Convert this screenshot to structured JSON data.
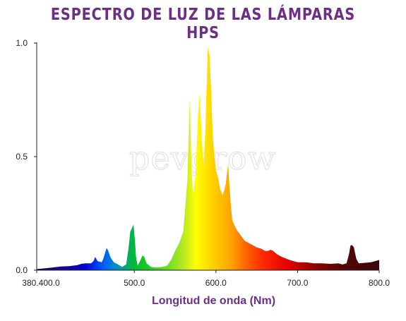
{
  "title": "ESPECTRO DE LUZ DE LAS LÁMPARAS HPS",
  "watermark": "pevgrow",
  "chart_data": {
    "type": "area",
    "title": "ESPECTRO DE LUZ DE LAS LÁMPARAS HPS",
    "xlabel": "Longitud de onda (Nm)",
    "ylabel": "",
    "xlim": [
      380.4,
      800
    ],
    "ylim": [
      0,
      1.0
    ],
    "x_ticks": [
      380.4,
      500,
      600,
      700,
      800
    ],
    "x_tick_labels": [
      "380.400.0",
      "500.0",
      "600.0",
      "700.0",
      "800.0"
    ],
    "y_ticks": [
      0,
      0.5,
      1.0
    ],
    "y_tick_labels": [
      "0.0",
      "0.5",
      "1.0"
    ],
    "grid": false,
    "legend": "none",
    "fill": "wavelength color gradient",
    "x": [
      380.4,
      390,
      400,
      410,
      420,
      430,
      435,
      440,
      447,
      450,
      452,
      455,
      460,
      462,
      466,
      468,
      471,
      475,
      480,
      485,
      490,
      493,
      495,
      497,
      499,
      501,
      502,
      504,
      507,
      510,
      512,
      515,
      520,
      525,
      530,
      535,
      540,
      545,
      550,
      555,
      560,
      565,
      568,
      570,
      572,
      575,
      578,
      580,
      582,
      584,
      585,
      587,
      590,
      592,
      594,
      596,
      598,
      600,
      603,
      605,
      608,
      610,
      612,
      614,
      615,
      616,
      618,
      620,
      625,
      630,
      635,
      640,
      650,
      655,
      660,
      664,
      667,
      670,
      675,
      680,
      690,
      700,
      710,
      720,
      730,
      740,
      750,
      755,
      760,
      763,
      765,
      767,
      769,
      772,
      775,
      780,
      790,
      800
    ],
    "y": [
      0.005,
      0.008,
      0.012,
      0.016,
      0.018,
      0.022,
      0.028,
      0.03,
      0.03,
      0.04,
      0.058,
      0.04,
      0.035,
      0.05,
      0.098,
      0.085,
      0.055,
      0.035,
      0.025,
      0.015,
      0.025,
      0.1,
      0.17,
      0.185,
      0.2,
      0.12,
      0.06,
      0.02,
      0.04,
      0.065,
      0.06,
      0.03,
      0.015,
      0.012,
      0.012,
      0.015,
      0.02,
      0.045,
      0.085,
      0.12,
      0.17,
      0.4,
      0.76,
      0.45,
      0.32,
      0.42,
      0.68,
      0.78,
      0.62,
      0.5,
      0.46,
      0.62,
      0.98,
      0.95,
      0.8,
      0.6,
      0.5,
      0.44,
      0.4,
      0.36,
      0.33,
      0.35,
      0.38,
      0.44,
      0.47,
      0.4,
      0.3,
      0.22,
      0.18,
      0.155,
      0.13,
      0.12,
      0.1,
      0.095,
      0.085,
      0.085,
      0.09,
      0.085,
      0.07,
      0.06,
      0.045,
      0.035,
      0.035,
      0.03,
      0.03,
      0.028,
      0.03,
      0.025,
      0.03,
      0.07,
      0.11,
      0.11,
      0.1,
      0.05,
      0.03,
      0.032,
      0.035,
      0.045
    ]
  }
}
